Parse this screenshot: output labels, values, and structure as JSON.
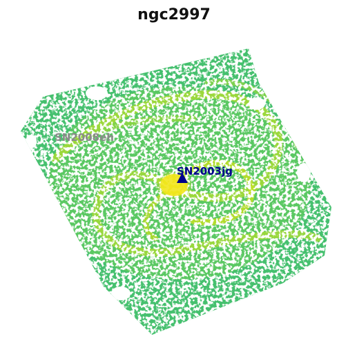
{
  "title": "ngc2997",
  "galaxy_image": {
    "colormap": "viridis (upper range)",
    "colors": {
      "background": "#ffffff",
      "disk_base": "#3ec27a",
      "disk_mid": "#73d055",
      "arm_bright": "#b8de29",
      "nucleus": "#fde725",
      "noise_gap": "#ffffff"
    }
  },
  "supernovae": [
    {
      "name": "SN2003jg",
      "marker": "triangle-up",
      "color": "#00008b"
    },
    {
      "name": "SN2008eh",
      "marker": "none",
      "color": "#8a8a8a"
    }
  ]
}
